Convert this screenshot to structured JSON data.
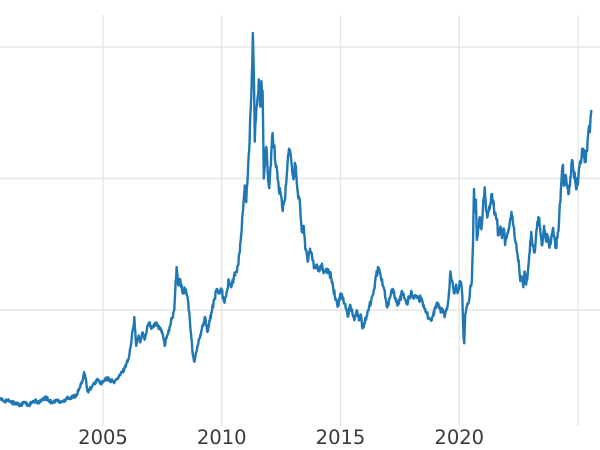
{
  "figure": {
    "title": "",
    "background_color": "#ffffff"
  },
  "axes": {
    "x_tick_labels": [
      "2005",
      "2010",
      "2015",
      "2020"
    ],
    "y_tick_labels": [],
    "tick_label_color": "#3a3a3a",
    "grid_color": "#e5e5e5"
  },
  "chart_data": {
    "type": "line",
    "title": "",
    "xlabel": "",
    "ylabel": "",
    "legend": null,
    "grid": true,
    "line_color": "#1f77b4",
    "x_ticks_labeled": [
      2005,
      2010,
      2015,
      2020
    ],
    "x_gridline_years": [
      2005,
      2010,
      2015,
      2020,
      2025
    ],
    "y_gridline_values_estimated": [
      15,
      30,
      45
    ],
    "x_range_visible": [
      2000.66,
      2025.93
    ],
    "y_range_visible": [
      2.0,
      50.4
    ],
    "jitter_pct_render_hint": 2.2,
    "series": [
      {
        "name": "price",
        "points": [
          [
            2000.68,
            4.9
          ],
          [
            2000.8,
            4.6
          ],
          [
            2000.95,
            4.7
          ],
          [
            2001.1,
            4.5
          ],
          [
            2001.25,
            4.4
          ],
          [
            2001.4,
            4.3
          ],
          [
            2001.55,
            4.2
          ],
          [
            2001.7,
            4.5
          ],
          [
            2001.85,
            4.1
          ],
          [
            2002.0,
            4.4
          ],
          [
            2002.15,
            4.6
          ],
          [
            2002.3,
            4.5
          ],
          [
            2002.45,
            4.7
          ],
          [
            2002.6,
            5.0
          ],
          [
            2002.75,
            4.6
          ],
          [
            2002.9,
            4.5
          ],
          [
            2003.05,
            4.7
          ],
          [
            2003.2,
            4.5
          ],
          [
            2003.35,
            4.6
          ],
          [
            2003.5,
            5.1
          ],
          [
            2003.6,
            4.9
          ],
          [
            2003.75,
            5.1
          ],
          [
            2003.9,
            5.4
          ],
          [
            2004.0,
            6.0
          ],
          [
            2004.1,
            6.6
          ],
          [
            2004.2,
            7.9
          ],
          [
            2004.28,
            7.2
          ],
          [
            2004.35,
            5.7
          ],
          [
            2004.45,
            6.0
          ],
          [
            2004.55,
            6.3
          ],
          [
            2004.65,
            6.6
          ],
          [
            2004.75,
            7.1
          ],
          [
            2004.85,
            6.8
          ],
          [
            2004.95,
            6.6
          ],
          [
            2005.05,
            6.9
          ],
          [
            2005.15,
            7.2
          ],
          [
            2005.3,
            7.0
          ],
          [
            2005.45,
            6.8
          ],
          [
            2005.6,
            7.1
          ],
          [
            2005.7,
            7.5
          ],
          [
            2005.8,
            7.9
          ],
          [
            2005.9,
            8.3
          ],
          [
            2006.0,
            9.0
          ],
          [
            2006.1,
            9.7
          ],
          [
            2006.2,
            11.5
          ],
          [
            2006.32,
            14.2
          ],
          [
            2006.4,
            10.9
          ],
          [
            2006.5,
            12.1
          ],
          [
            2006.57,
            11.3
          ],
          [
            2006.65,
            12.4
          ],
          [
            2006.75,
            11.6
          ],
          [
            2006.85,
            12.9
          ],
          [
            2006.95,
            13.6
          ],
          [
            2007.05,
            12.9
          ],
          [
            2007.15,
            13.4
          ],
          [
            2007.3,
            13.3
          ],
          [
            2007.4,
            12.8
          ],
          [
            2007.5,
            12.4
          ],
          [
            2007.6,
            10.9
          ],
          [
            2007.7,
            12.1
          ],
          [
            2007.8,
            13.0
          ],
          [
            2007.9,
            14.0
          ],
          [
            2008.0,
            15.0
          ],
          [
            2008.1,
            19.9
          ],
          [
            2008.17,
            17.8
          ],
          [
            2008.25,
            18.5
          ],
          [
            2008.35,
            16.9
          ],
          [
            2008.45,
            17.3
          ],
          [
            2008.55,
            16.6
          ],
          [
            2008.63,
            14.8
          ],
          [
            2008.7,
            12.4
          ],
          [
            2008.78,
            9.9
          ],
          [
            2008.85,
            9.1
          ],
          [
            2008.93,
            10.2
          ],
          [
            2009.0,
            11.0
          ],
          [
            2009.1,
            12.2
          ],
          [
            2009.2,
            13.3
          ],
          [
            2009.3,
            14.2
          ],
          [
            2009.4,
            12.5
          ],
          [
            2009.5,
            13.8
          ],
          [
            2009.6,
            15.2
          ],
          [
            2009.7,
            16.3
          ],
          [
            2009.8,
            17.4
          ],
          [
            2009.9,
            16.9
          ],
          [
            2010.0,
            17.2
          ],
          [
            2010.1,
            15.9
          ],
          [
            2010.2,
            17.0
          ],
          [
            2010.3,
            18.4
          ],
          [
            2010.4,
            17.6
          ],
          [
            2010.5,
            18.6
          ],
          [
            2010.6,
            19.3
          ],
          [
            2010.7,
            20.2
          ],
          [
            2010.8,
            23.0
          ],
          [
            2010.9,
            26.5
          ],
          [
            2010.97,
            29.2
          ],
          [
            2011.03,
            27.3
          ],
          [
            2011.1,
            30.5
          ],
          [
            2011.17,
            34.0
          ],
          [
            2011.22,
            38.0
          ],
          [
            2011.27,
            42.0
          ],
          [
            2011.31,
            46.6
          ],
          [
            2011.35,
            42.0
          ],
          [
            2011.39,
            34.2
          ],
          [
            2011.44,
            36.8
          ],
          [
            2011.5,
            39.0
          ],
          [
            2011.56,
            41.3
          ],
          [
            2011.6,
            39.5
          ],
          [
            2011.63,
            38.2
          ],
          [
            2011.67,
            41.1
          ],
          [
            2011.72,
            40.0
          ],
          [
            2011.77,
            30.0
          ],
          [
            2011.82,
            31.8
          ],
          [
            2011.87,
            33.6
          ],
          [
            2011.93,
            31.0
          ],
          [
            2012.0,
            28.9
          ],
          [
            2012.07,
            31.5
          ],
          [
            2012.14,
            35.2
          ],
          [
            2012.2,
            33.5
          ],
          [
            2012.3,
            31.5
          ],
          [
            2012.4,
            29.0
          ],
          [
            2012.5,
            28.0
          ],
          [
            2012.57,
            26.3
          ],
          [
            2012.65,
            27.5
          ],
          [
            2012.75,
            30.8
          ],
          [
            2012.83,
            33.4
          ],
          [
            2012.93,
            32.0
          ],
          [
            2013.0,
            30.3
          ],
          [
            2013.1,
            31.5
          ],
          [
            2013.2,
            28.5
          ],
          [
            2013.3,
            26.9
          ],
          [
            2013.37,
            23.9
          ],
          [
            2013.45,
            24.6
          ],
          [
            2013.52,
            21.9
          ],
          [
            2013.62,
            20.5
          ],
          [
            2013.72,
            22.0
          ],
          [
            2013.8,
            21.3
          ],
          [
            2013.9,
            19.9
          ],
          [
            2014.0,
            20.2
          ],
          [
            2014.1,
            19.4
          ],
          [
            2014.2,
            20.1
          ],
          [
            2014.3,
            19.2
          ],
          [
            2014.4,
            19.7
          ],
          [
            2014.5,
            19.5
          ],
          [
            2014.6,
            18.8
          ],
          [
            2014.7,
            17.3
          ],
          [
            2014.8,
            16.3
          ],
          [
            2014.9,
            15.5
          ],
          [
            2015.0,
            16.9
          ],
          [
            2015.1,
            16.2
          ],
          [
            2015.2,
            15.7
          ],
          [
            2015.3,
            14.3
          ],
          [
            2015.4,
            15.6
          ],
          [
            2015.5,
            14.7
          ],
          [
            2015.6,
            14.0
          ],
          [
            2015.7,
            14.9
          ],
          [
            2015.78,
            13.8
          ],
          [
            2015.85,
            14.5
          ],
          [
            2015.93,
            12.9
          ],
          [
            2016.0,
            13.5
          ],
          [
            2016.1,
            14.3
          ],
          [
            2016.2,
            15.3
          ],
          [
            2016.3,
            16.2
          ],
          [
            2016.4,
            17.3
          ],
          [
            2016.5,
            18.9
          ],
          [
            2016.6,
            19.8
          ],
          [
            2016.68,
            19.1
          ],
          [
            2016.75,
            18.5
          ],
          [
            2016.82,
            17.6
          ],
          [
            2016.9,
            16.3
          ],
          [
            2016.97,
            15.3
          ],
          [
            2017.05,
            16.3
          ],
          [
            2017.12,
            16.8
          ],
          [
            2017.2,
            17.4
          ],
          [
            2017.3,
            16.4
          ],
          [
            2017.4,
            15.5
          ],
          [
            2017.5,
            16.1
          ],
          [
            2017.6,
            17.1
          ],
          [
            2017.7,
            16.3
          ],
          [
            2017.8,
            15.8
          ],
          [
            2017.9,
            16.5
          ],
          [
            2018.0,
            17.0
          ],
          [
            2018.1,
            16.3
          ],
          [
            2018.2,
            16.6
          ],
          [
            2018.3,
            16.2
          ],
          [
            2018.4,
            16.4
          ],
          [
            2018.5,
            15.6
          ],
          [
            2018.6,
            14.8
          ],
          [
            2018.7,
            14.2
          ],
          [
            2018.8,
            14.0
          ],
          [
            2018.9,
            14.3
          ],
          [
            2019.0,
            15.4
          ],
          [
            2019.1,
            15.8
          ],
          [
            2019.2,
            15.1
          ],
          [
            2019.3,
            14.8
          ],
          [
            2019.4,
            14.4
          ],
          [
            2019.5,
            15.3
          ],
          [
            2019.57,
            17.1
          ],
          [
            2019.63,
            19.4
          ],
          [
            2019.68,
            18.3
          ],
          [
            2019.75,
            17.6
          ],
          [
            2019.8,
            16.9
          ],
          [
            2019.87,
            17.9
          ],
          [
            2019.93,
            16.9
          ],
          [
            2020.0,
            17.8
          ],
          [
            2020.07,
            18.2
          ],
          [
            2020.13,
            16.6
          ],
          [
            2020.18,
            11.9
          ],
          [
            2020.21,
            11.2
          ],
          [
            2020.25,
            14.4
          ],
          [
            2020.3,
            15.2
          ],
          [
            2020.36,
            15.7
          ],
          [
            2020.42,
            16.2
          ],
          [
            2020.48,
            17.8
          ],
          [
            2020.53,
            18.3
          ],
          [
            2020.58,
            22.5
          ],
          [
            2020.62,
            28.8
          ],
          [
            2020.66,
            26.2
          ],
          [
            2020.7,
            27.6
          ],
          [
            2020.74,
            23.0
          ],
          [
            2020.8,
            24.3
          ],
          [
            2020.87,
            25.6
          ],
          [
            2020.93,
            24.2
          ],
          [
            2021.0,
            26.8
          ],
          [
            2021.07,
            29.0
          ],
          [
            2021.13,
            26.3
          ],
          [
            2021.2,
            25.8
          ],
          [
            2021.28,
            26.5
          ],
          [
            2021.35,
            28.2
          ],
          [
            2021.42,
            27.5
          ],
          [
            2021.5,
            26.0
          ],
          [
            2021.57,
            25.3
          ],
          [
            2021.65,
            23.6
          ],
          [
            2021.72,
            24.4
          ],
          [
            2021.8,
            23.2
          ],
          [
            2021.87,
            24.3
          ],
          [
            2021.93,
            22.4
          ],
          [
            2022.0,
            23.3
          ],
          [
            2022.07,
            24.2
          ],
          [
            2022.13,
            25.1
          ],
          [
            2022.2,
            26.2
          ],
          [
            2022.28,
            24.6
          ],
          [
            2022.35,
            23.0
          ],
          [
            2022.42,
            21.8
          ],
          [
            2022.5,
            20.7
          ],
          [
            2022.57,
            18.3
          ],
          [
            2022.65,
            18.8
          ],
          [
            2022.7,
            17.6
          ],
          [
            2022.75,
            19.4
          ],
          [
            2022.82,
            17.9
          ],
          [
            2022.88,
            19.0
          ],
          [
            2022.95,
            21.3
          ],
          [
            2023.03,
            23.9
          ],
          [
            2023.1,
            22.3
          ],
          [
            2023.18,
            21.6
          ],
          [
            2023.27,
            24.3
          ],
          [
            2023.35,
            25.4
          ],
          [
            2023.42,
            23.7
          ],
          [
            2023.5,
            22.5
          ],
          [
            2023.57,
            24.6
          ],
          [
            2023.65,
            22.9
          ],
          [
            2023.72,
            23.3
          ],
          [
            2023.8,
            22.1
          ],
          [
            2023.87,
            23.1
          ],
          [
            2023.93,
            24.1
          ],
          [
            2024.0,
            23.4
          ],
          [
            2024.07,
            22.1
          ],
          [
            2024.13,
            23.2
          ],
          [
            2024.2,
            25.0
          ],
          [
            2024.28,
            28.8
          ],
          [
            2024.35,
            31.4
          ],
          [
            2024.42,
            29.3
          ],
          [
            2024.48,
            30.4
          ],
          [
            2024.55,
            29.0
          ],
          [
            2024.62,
            28.3
          ],
          [
            2024.68,
            30.2
          ],
          [
            2024.75,
            32.1
          ],
          [
            2024.82,
            30.9
          ],
          [
            2024.88,
            29.7
          ],
          [
            2024.95,
            29.0
          ],
          [
            2025.02,
            30.3
          ],
          [
            2025.08,
            31.8
          ],
          [
            2025.15,
            32.4
          ],
          [
            2025.22,
            33.4
          ],
          [
            2025.3,
            32.3
          ],
          [
            2025.37,
            33.1
          ],
          [
            2025.42,
            34.8
          ],
          [
            2025.47,
            36.0
          ],
          [
            2025.5,
            35.3
          ],
          [
            2025.53,
            37.0
          ],
          [
            2025.56,
            37.7
          ]
        ]
      }
    ]
  }
}
